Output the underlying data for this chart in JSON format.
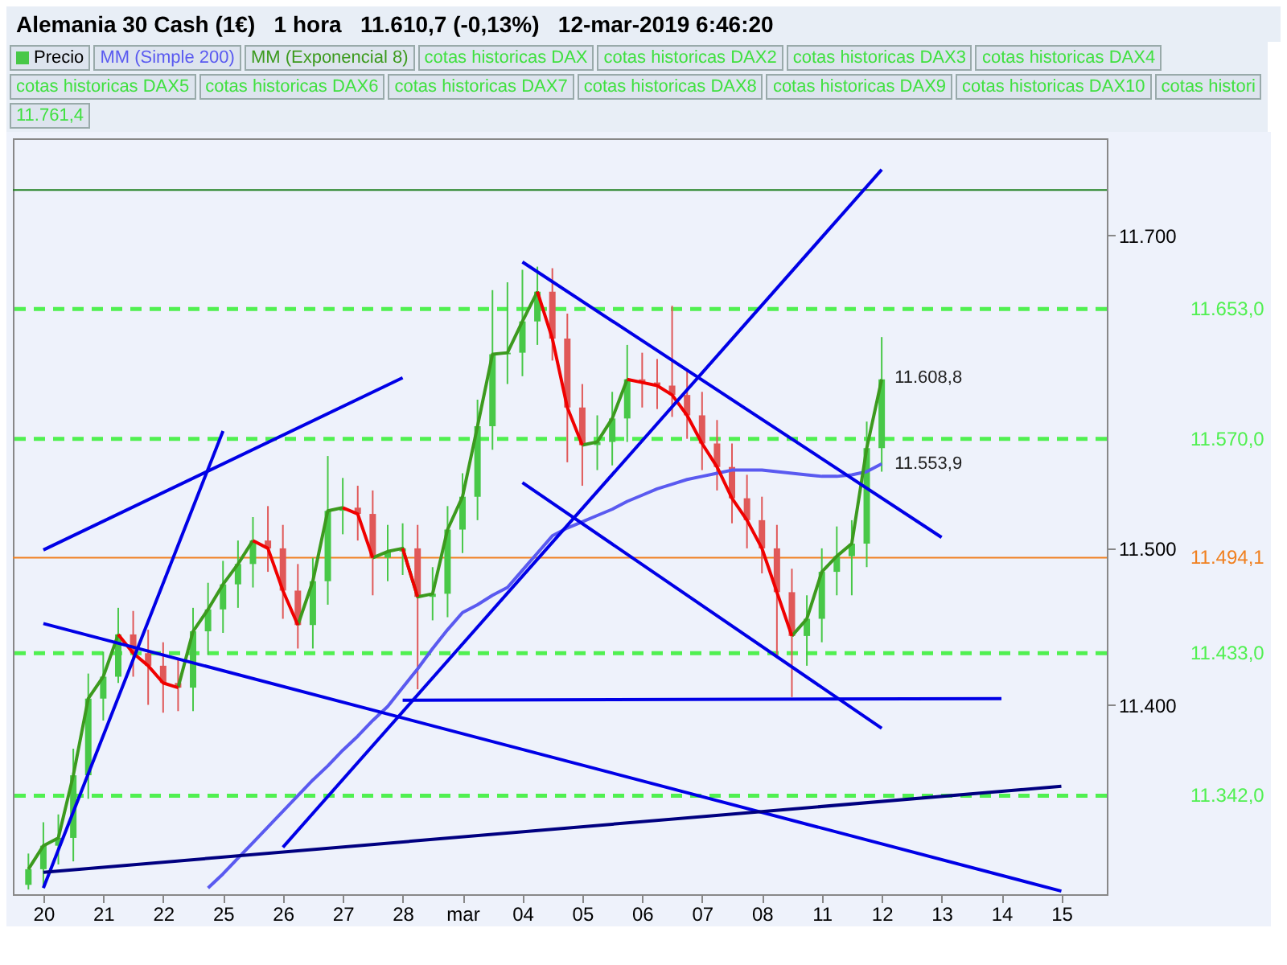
{
  "chart_data": {
    "type": "candlestick",
    "title": "Alemania 30 Cash (1€)   1 hora   11.610,7 (-0,13%)   12-mar-2019 6:46:20",
    "categories": [
      null,
      "20",
      null,
      null,
      null,
      "21",
      null,
      null,
      null,
      "22",
      null,
      null,
      null,
      "25",
      null,
      null,
      null,
      "26",
      null,
      null,
      null,
      "27",
      null,
      null,
      null,
      "28",
      null,
      null,
      null,
      "mar",
      null,
      null,
      null,
      "04",
      null,
      null,
      null,
      "05",
      null,
      null,
      null,
      "06",
      null,
      null,
      null,
      "07",
      null,
      null,
      null,
      "08",
      null,
      null,
      null,
      "11",
      null,
      null,
      null,
      "12",
      null,
      null,
      null,
      "13",
      null,
      null,
      null,
      "14",
      null,
      null,
      null,
      "15",
      null,
      null
    ],
    "ylim": [
      11279,
      11762
    ],
    "yticks": [
      {
        "value": 11400,
        "label": "11.400"
      },
      {
        "value": 11500,
        "label": "11.500"
      },
      {
        "value": 11700,
        "label": "11.700"
      }
    ],
    "grid": false,
    "legend": "top",
    "series": [
      {
        "name": "Precio",
        "ohlc": [
          [
            11285,
            11305,
            11282,
            11295
          ],
          [
            11295,
            11325,
            11283,
            11310
          ],
          [
            11310,
            11330,
            11298,
            11315
          ],
          [
            11315,
            11372,
            11300,
            11355
          ],
          [
            11355,
            11420,
            11340,
            11404
          ],
          [
            11404,
            11434,
            11390,
            11418
          ],
          [
            11418,
            11462,
            11414,
            11445
          ],
          [
            11445,
            11460,
            11418,
            11433
          ],
          [
            11433,
            11448,
            11400,
            11425
          ],
          [
            11425,
            11440,
            11395,
            11414
          ],
          [
            11414,
            11430,
            11396,
            11411
          ],
          [
            11411,
            11462,
            11396,
            11447
          ],
          [
            11447,
            11478,
            11432,
            11461
          ],
          [
            11461,
            11492,
            11446,
            11477
          ],
          [
            11477,
            11505,
            11462,
            11490
          ],
          [
            11490,
            11520,
            11475,
            11505
          ],
          [
            11505,
            11527,
            11485,
            11500
          ],
          [
            11500,
            11515,
            11455,
            11473
          ],
          [
            11473,
            11490,
            11436,
            11451
          ],
          [
            11451,
            11494,
            11436,
            11479
          ],
          [
            11479,
            11559,
            11464,
            11524
          ],
          [
            11524,
            11545,
            11509,
            11526
          ],
          [
            11526,
            11540,
            11505,
            11522
          ],
          [
            11522,
            11537,
            11470,
            11494
          ],
          [
            11494,
            11515,
            11479,
            11498
          ],
          [
            11498,
            11516,
            11483,
            11500
          ],
          [
            11500,
            11515,
            11410,
            11469
          ],
          [
            11469,
            11488,
            11454,
            11471
          ],
          [
            11471,
            11527,
            11456,
            11512
          ],
          [
            11512,
            11548,
            11497,
            11533
          ],
          [
            11533,
            11595,
            11518,
            11578
          ],
          [
            11578,
            11665,
            11563,
            11624
          ],
          [
            11624,
            11670,
            11605,
            11625
          ],
          [
            11625,
            11678,
            11610,
            11645
          ],
          [
            11645,
            11680,
            11630,
            11664
          ],
          [
            11664,
            11679,
            11620,
            11634
          ],
          [
            11634,
            11650,
            11555,
            11590
          ],
          [
            11590,
            11605,
            11540,
            11566
          ],
          [
            11566,
            11585,
            11550,
            11568
          ],
          [
            11568,
            11600,
            11553,
            11583
          ],
          [
            11583,
            11630,
            11568,
            11608
          ],
          [
            11608,
            11625,
            11590,
            11606
          ],
          [
            11606,
            11621,
            11589,
            11604
          ],
          [
            11604,
            11655,
            11584,
            11598
          ],
          [
            11598,
            11613,
            11570,
            11585
          ],
          [
            11585,
            11600,
            11550,
            11567
          ],
          [
            11567,
            11582,
            11537,
            11552
          ],
          [
            11552,
            11567,
            11516,
            11532
          ],
          [
            11532,
            11547,
            11500,
            11518
          ],
          [
            11518,
            11533,
            11484,
            11500
          ],
          [
            11500,
            11515,
            11430,
            11472
          ],
          [
            11472,
            11487,
            11405,
            11444
          ],
          [
            11444,
            11470,
            11425,
            11455
          ],
          [
            11455,
            11500,
            11440,
            11485
          ],
          [
            11485,
            11514,
            11470,
            11495
          ],
          [
            11495,
            11518,
            11470,
            11503
          ],
          [
            11503,
            11581,
            11488,
            11564
          ],
          [
            11564,
            11635,
            11549,
            11608
          ],
          null,
          null,
          null,
          null,
          null,
          null,
          null,
          null,
          null,
          null,
          null,
          null,
          null,
          null
        ],
        "colors": [
          "#48c848",
          "#48c848",
          "#48c848",
          "#48c848",
          "#48c848",
          "#48c848",
          "#48c848",
          "#e05858",
          "#e05858",
          "#e05858",
          "#e05858",
          "#48c848",
          "#48c848",
          "#48c848",
          "#48c848",
          "#48c848",
          "#e05858",
          "#e05858",
          "#e05858",
          "#48c848",
          "#48c848",
          "#48c848",
          "#e05858",
          "#e05858",
          "#48c848",
          "#48c848",
          "#e05858",
          "#48c848",
          "#48c848",
          "#48c848",
          "#48c848",
          "#48c848",
          "#48c848",
          "#48c848",
          "#48c848",
          "#e05858",
          "#e05858",
          "#e05858",
          "#48c848",
          "#48c848",
          "#48c848",
          "#e05858",
          "#e05858",
          "#e05858",
          "#e05858",
          "#e05858",
          "#e05858",
          "#e05858",
          "#e05858",
          "#e05858",
          "#e05858",
          "#e05858",
          "#48c848",
          "#48c848",
          "#48c848",
          "#48c848",
          "#48c848",
          "#48c848",
          null,
          null,
          null,
          null,
          null,
          null,
          null,
          null,
          null,
          null,
          null,
          null,
          null,
          null
        ]
      },
      {
        "name": "MM (Simple 200)",
        "type": "line",
        "color": "#5a5af0",
        "values": [
          null,
          null,
          null,
          null,
          null,
          null,
          null,
          null,
          null,
          null,
          null,
          null,
          11283,
          11292,
          11302,
          11312,
          11322,
          11332,
          11342,
          11352,
          11361,
          11371,
          11380,
          11390,
          11399,
          11411,
          11423,
          11436,
          11448,
          11459,
          11464,
          11470,
          11475,
          11486,
          11497,
          11508,
          11513,
          11517,
          11521,
          11525,
          11530,
          11534,
          11538,
          11541,
          11544,
          11546,
          11548,
          11550,
          11550,
          11550,
          11549,
          11548,
          11547,
          11546,
          11546,
          11547,
          11549,
          11554,
          null,
          null,
          null,
          null,
          null,
          null,
          null,
          null,
          null,
          null,
          null,
          null,
          null,
          null
        ]
      },
      {
        "name": "MM (Exponencial 8)",
        "type": "line",
        "color": "#3c9a1e",
        "values": [
          11295,
          11310,
          11315,
          11355,
          11404,
          11418,
          11445,
          null,
          null,
          null,
          11411,
          11447,
          11461,
          11477,
          11490,
          11505,
          null,
          null,
          11451,
          11479,
          11524,
          11526,
          null,
          11494,
          11498,
          11500,
          11469,
          11471,
          11512,
          11533,
          11578,
          11624,
          11625,
          11645,
          11664,
          null,
          null,
          11566,
          11568,
          11583,
          11608,
          null,
          null,
          null,
          null,
          null,
          null,
          null,
          null,
          null,
          null,
          11444,
          11455,
          11485,
          11495,
          11503,
          11564,
          11608,
          null,
          null,
          null,
          null,
          null,
          null,
          null,
          null,
          null,
          null,
          null,
          null,
          null,
          null
        ]
      },
      {
        "type": "line",
        "color": "#f00000",
        "values": [
          null,
          null,
          null,
          null,
          null,
          null,
          11445,
          11433,
          11425,
          11414,
          11411,
          null,
          null,
          null,
          null,
          11505,
          11500,
          11473,
          11451,
          null,
          null,
          11526,
          11522,
          11494,
          null,
          11500,
          11469,
          null,
          null,
          null,
          null,
          null,
          null,
          null,
          11664,
          11634,
          11590,
          11566,
          null,
          null,
          11608,
          11606,
          11604,
          11598,
          11585,
          11567,
          11552,
          11532,
          11518,
          11500,
          11472,
          11444,
          null,
          null,
          null,
          null,
          null,
          null,
          null,
          null,
          null,
          null,
          null,
          null,
          null,
          null,
          null,
          null,
          null,
          null,
          null,
          null
        ]
      },
      {
        "type": "line",
        "color": "#0000e6",
        "x": [
          "20",
          "28"
        ],
        "values": [
          11499,
          11609
        ]
      },
      {
        "type": "line",
        "color": "#0000e6",
        "x": [
          "20",
          "25"
        ],
        "values": [
          11283,
          11575
        ]
      },
      {
        "type": "line",
        "color": "#0000e6",
        "x": [
          "20",
          "15"
        ],
        "values": [
          11452,
          11281
        ]
      },
      {
        "type": "line",
        "color": "#000080",
        "x": [
          "20",
          "15"
        ],
        "values": [
          11293,
          11348
        ]
      },
      {
        "type": "line",
        "color": "#0000e6",
        "x": [
          "26",
          "12"
        ],
        "values": [
          11309,
          11742
        ]
      },
      {
        "type": "line",
        "color": "#0000e6",
        "x": [
          "04",
          "13"
        ],
        "values": [
          11683,
          11507
        ]
      },
      {
        "type": "line",
        "color": "#0000e6",
        "x": [
          "04",
          "12"
        ],
        "values": [
          11542,
          11385
        ]
      },
      {
        "type": "line",
        "color": "#0000e6",
        "x": [
          "28",
          "14"
        ],
        "values": [
          11403,
          11404
        ]
      }
    ],
    "ref_lines": [
      {
        "axis": "y",
        "value": 11729,
        "color": "#208020",
        "line_style": "solid"
      },
      {
        "axis": "y",
        "value": 11653,
        "label": "11.653,0",
        "color": "#50f050",
        "line_style": "dashed"
      },
      {
        "axis": "y",
        "value": 11570,
        "label": "11.570,0",
        "color": "#50f050",
        "line_style": "dashed"
      },
      {
        "axis": "y",
        "value": 11494.1,
        "label": "11.494,1",
        "color": "#f08020",
        "line_style": "solid"
      },
      {
        "axis": "y",
        "value": 11433,
        "label": "11.433,0",
        "color": "#50f050",
        "line_style": "dashed"
      },
      {
        "axis": "y",
        "value": 11342,
        "label": "11.342,0",
        "color": "#50f050",
        "line_style": "dashed"
      }
    ],
    "annotations": [
      "cotas historicas DAX",
      "cotas historicas DAX2",
      "cotas historicas DAX3",
      "cotas historicas DAX4",
      "cotas historicas DAX5",
      "cotas historicas DAX6",
      "cotas historicas DAX7",
      "cotas historicas DAX8",
      "cotas historicas DAX9",
      "cotas historicas DAX10",
      "cotas histori",
      "11.761,4",
      {
        "text": "11.608,8",
        "x": "12",
        "y": 11608.8
      },
      {
        "text": "11.553,9",
        "x": "12",
        "y": 11553.9
      }
    ]
  }
}
